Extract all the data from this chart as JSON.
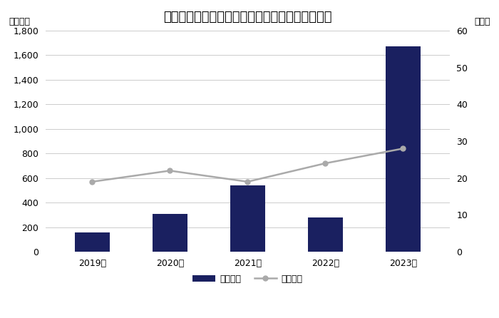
{
  "title": "電子・デバイス関連工場の立地件数・面積の推移",
  "years": [
    "2019年",
    "2020年",
    "2021年",
    "2022年",
    "2023年"
  ],
  "area_values": [
    155,
    310,
    540,
    280,
    1670
  ],
  "count_values": [
    19,
    22,
    19,
    24,
    28
  ],
  "bar_color": "#1a2060",
  "line_color": "#aaaaaa",
  "left_ylabel": "（千㎡）",
  "right_ylabel": "（件）",
  "left_ylim": [
    0,
    1800
  ],
  "right_ylim": [
    0,
    60
  ],
  "left_yticks": [
    0,
    200,
    400,
    600,
    800,
    1000,
    1200,
    1400,
    1600,
    1800
  ],
  "right_yticks": [
    0,
    10,
    20,
    30,
    40,
    50,
    60
  ],
  "legend_bar": "立地面積",
  "legend_line": "立地件数",
  "bg_color": "#ffffff",
  "grid_color": "#cccccc",
  "title_fontsize": 13,
  "label_fontsize": 9,
  "tick_fontsize": 9
}
